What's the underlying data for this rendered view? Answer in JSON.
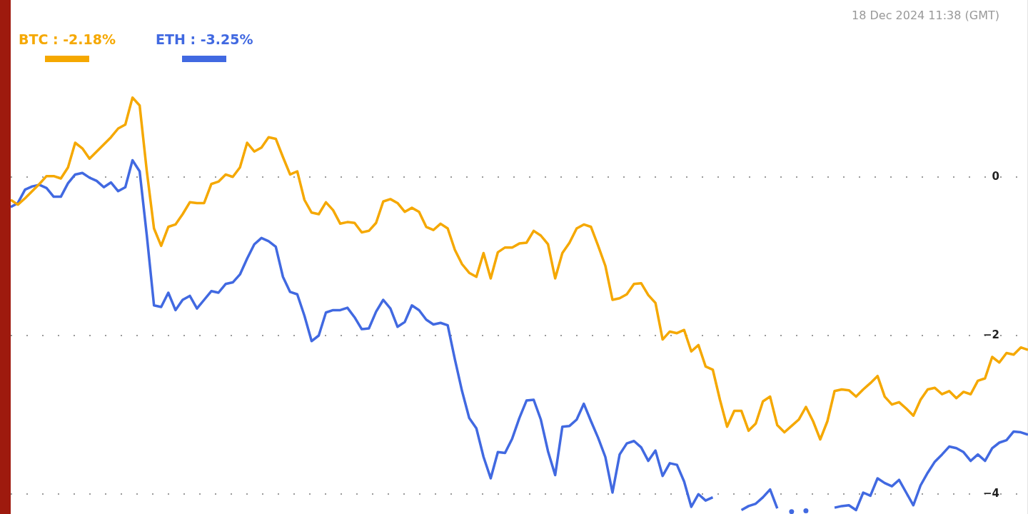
{
  "chart_data": {
    "type": "line",
    "subtitle": "18 Dec 2024 11:38 (GMT)",
    "categories": [
      null,
      null,
      null,
      null,
      null,
      null,
      null,
      null,
      null,
      null,
      null,
      null,
      null,
      null,
      null,
      null,
      null,
      null,
      null,
      null,
      null,
      null,
      null,
      null,
      null,
      null,
      null,
      null,
      null,
      null,
      null,
      null,
      null,
      null,
      null,
      null,
      null,
      null,
      null,
      null,
      null,
      null,
      null,
      null,
      null,
      null,
      null,
      null,
      null,
      null,
      null,
      null,
      null,
      null,
      null,
      null,
      null,
      null,
      null,
      null,
      null,
      null,
      null,
      null,
      null,
      null,
      null,
      null,
      null,
      null,
      null,
      null,
      null,
      null,
      null,
      null,
      null,
      null,
      null,
      null,
      null,
      null,
      null,
      null,
      null,
      null,
      null,
      null,
      null,
      null,
      null,
      null,
      null,
      null,
      null,
      null,
      null,
      null,
      null,
      null,
      null,
      null,
      null,
      null,
      null,
      null,
      null,
      null,
      null,
      null,
      null,
      null,
      null,
      null,
      null,
      null,
      null,
      null,
      null,
      null,
      null,
      null,
      null,
      null,
      null,
      null,
      null,
      null,
      null,
      null,
      null,
      null,
      null,
      null,
      null,
      null,
      null,
      null,
      null,
      null,
      null,
      null,
      null
    ],
    "series": [
      {
        "name": "BTC : -2.18%",
        "color": "#f5a800",
        "values": [
          -0.29,
          -0.35,
          -0.27,
          -0.18,
          -0.09,
          0.01,
          0.01,
          -0.02,
          0.12,
          0.43,
          0.36,
          0.23,
          0.32,
          0.41,
          0.5,
          0.61,
          0.66,
          1.0,
          0.9,
          0.07,
          -0.65,
          -0.87,
          -0.63,
          -0.6,
          -0.47,
          -0.32,
          -0.33,
          -0.33,
          -0.09,
          -0.06,
          0.03,
          0.0,
          0.12,
          0.43,
          0.32,
          0.37,
          0.5,
          0.48,
          0.25,
          0.03,
          0.07,
          -0.29,
          -0.45,
          -0.47,
          -0.32,
          -0.42,
          -0.59,
          -0.57,
          -0.58,
          -0.7,
          -0.68,
          -0.58,
          -0.31,
          -0.28,
          -0.33,
          -0.44,
          -0.39,
          -0.44,
          -0.63,
          -0.67,
          -0.59,
          -0.65,
          -0.92,
          -1.1,
          -1.21,
          -1.26,
          -0.96,
          -1.28,
          -0.95,
          -0.89,
          -0.89,
          -0.84,
          -0.83,
          -0.68,
          -0.74,
          -0.85,
          -1.28,
          -0.96,
          -0.83,
          -0.65,
          -0.6,
          -0.63,
          -0.87,
          -1.12,
          -1.55,
          -1.53,
          -1.48,
          -1.35,
          -1.34,
          -1.49,
          -1.59,
          -2.05,
          -1.95,
          -1.97,
          -1.93,
          -2.2,
          -2.12,
          -2.39,
          -2.43,
          -2.81,
          -3.15,
          -2.95,
          -2.95,
          -3.2,
          -3.11,
          -2.83,
          -2.77,
          -3.13,
          -3.22,
          -3.14,
          -3.06,
          -2.9,
          -3.08,
          -3.31,
          -3.08,
          -2.7,
          -2.68,
          -2.69,
          -2.77,
          -2.68,
          -2.6,
          -2.51,
          -2.77,
          -2.87,
          -2.84,
          -2.92,
          -3.01,
          -2.81,
          -2.68,
          -2.66,
          -2.74,
          -2.7,
          -2.79,
          -2.71,
          -2.74,
          -2.57,
          -2.54,
          -2.27,
          -2.34,
          -2.22,
          -2.24,
          -2.15,
          -2.18
        ]
      },
      {
        "name": "ETH : -3.25%",
        "color": "#4169e1",
        "values": [
          -0.38,
          -0.33,
          -0.16,
          -0.12,
          -0.1,
          -0.14,
          -0.25,
          -0.25,
          -0.08,
          0.03,
          0.05,
          -0.01,
          -0.05,
          -0.13,
          -0.07,
          -0.18,
          -0.13,
          0.21,
          0.07,
          -0.74,
          -1.62,
          -1.64,
          -1.46,
          -1.68,
          -1.55,
          -1.5,
          -1.66,
          -1.55,
          -1.44,
          -1.46,
          -1.35,
          -1.33,
          -1.23,
          -1.03,
          -0.85,
          -0.77,
          -0.81,
          -0.88,
          -1.26,
          -1.45,
          -1.48,
          -1.75,
          -2.07,
          -2.0,
          -1.71,
          -1.68,
          -1.68,
          -1.65,
          -1.77,
          -1.92,
          -1.91,
          -1.7,
          -1.55,
          -1.66,
          -1.89,
          -1.83,
          -1.62,
          -1.68,
          -1.8,
          -1.86,
          -1.84,
          -1.87,
          -2.3,
          -2.7,
          -3.04,
          -3.17,
          -3.53,
          -3.8,
          -3.47,
          -3.48,
          -3.3,
          -3.04,
          -2.82,
          -2.81,
          -3.06,
          -3.46,
          -3.76,
          -3.15,
          -3.14,
          -3.06,
          -2.86,
          -3.08,
          -3.29,
          -3.53,
          -3.98,
          -3.5,
          -3.36,
          -3.33,
          -3.41,
          -3.58,
          -3.45,
          -3.77,
          -3.61,
          -3.63,
          -3.84,
          -4.16,
          -4.0,
          -4.08,
          -4.04,
          null,
          null,
          null,
          -4.2,
          -4.15,
          -4.12,
          -4.04,
          -3.94,
          -4.18,
          null,
          -4.22,
          null,
          -4.21,
          null,
          null,
          null,
          -4.17,
          -4.15,
          -4.14,
          -4.2,
          -3.98,
          -4.02,
          -3.8,
          -3.86,
          -3.9,
          -3.82,
          -3.98,
          -4.14,
          -3.89,
          -3.73,
          -3.59,
          -3.5,
          -3.4,
          -3.42,
          -3.47,
          -3.58,
          -3.5,
          -3.58,
          -3.42,
          -3.35,
          -3.32,
          -3.21,
          -3.22,
          -3.25
        ]
      }
    ],
    "ylim": [
      -4.25,
      2.23
    ],
    "yticks": [
      {
        "value": 0,
        "label": "0"
      },
      {
        "value": -2,
        "label": "−2"
      },
      {
        "value": -4,
        "label": "−4"
      }
    ],
    "grid": "y",
    "legend": "top left",
    "tick_labels": "y",
    "marker": "none"
  }
}
